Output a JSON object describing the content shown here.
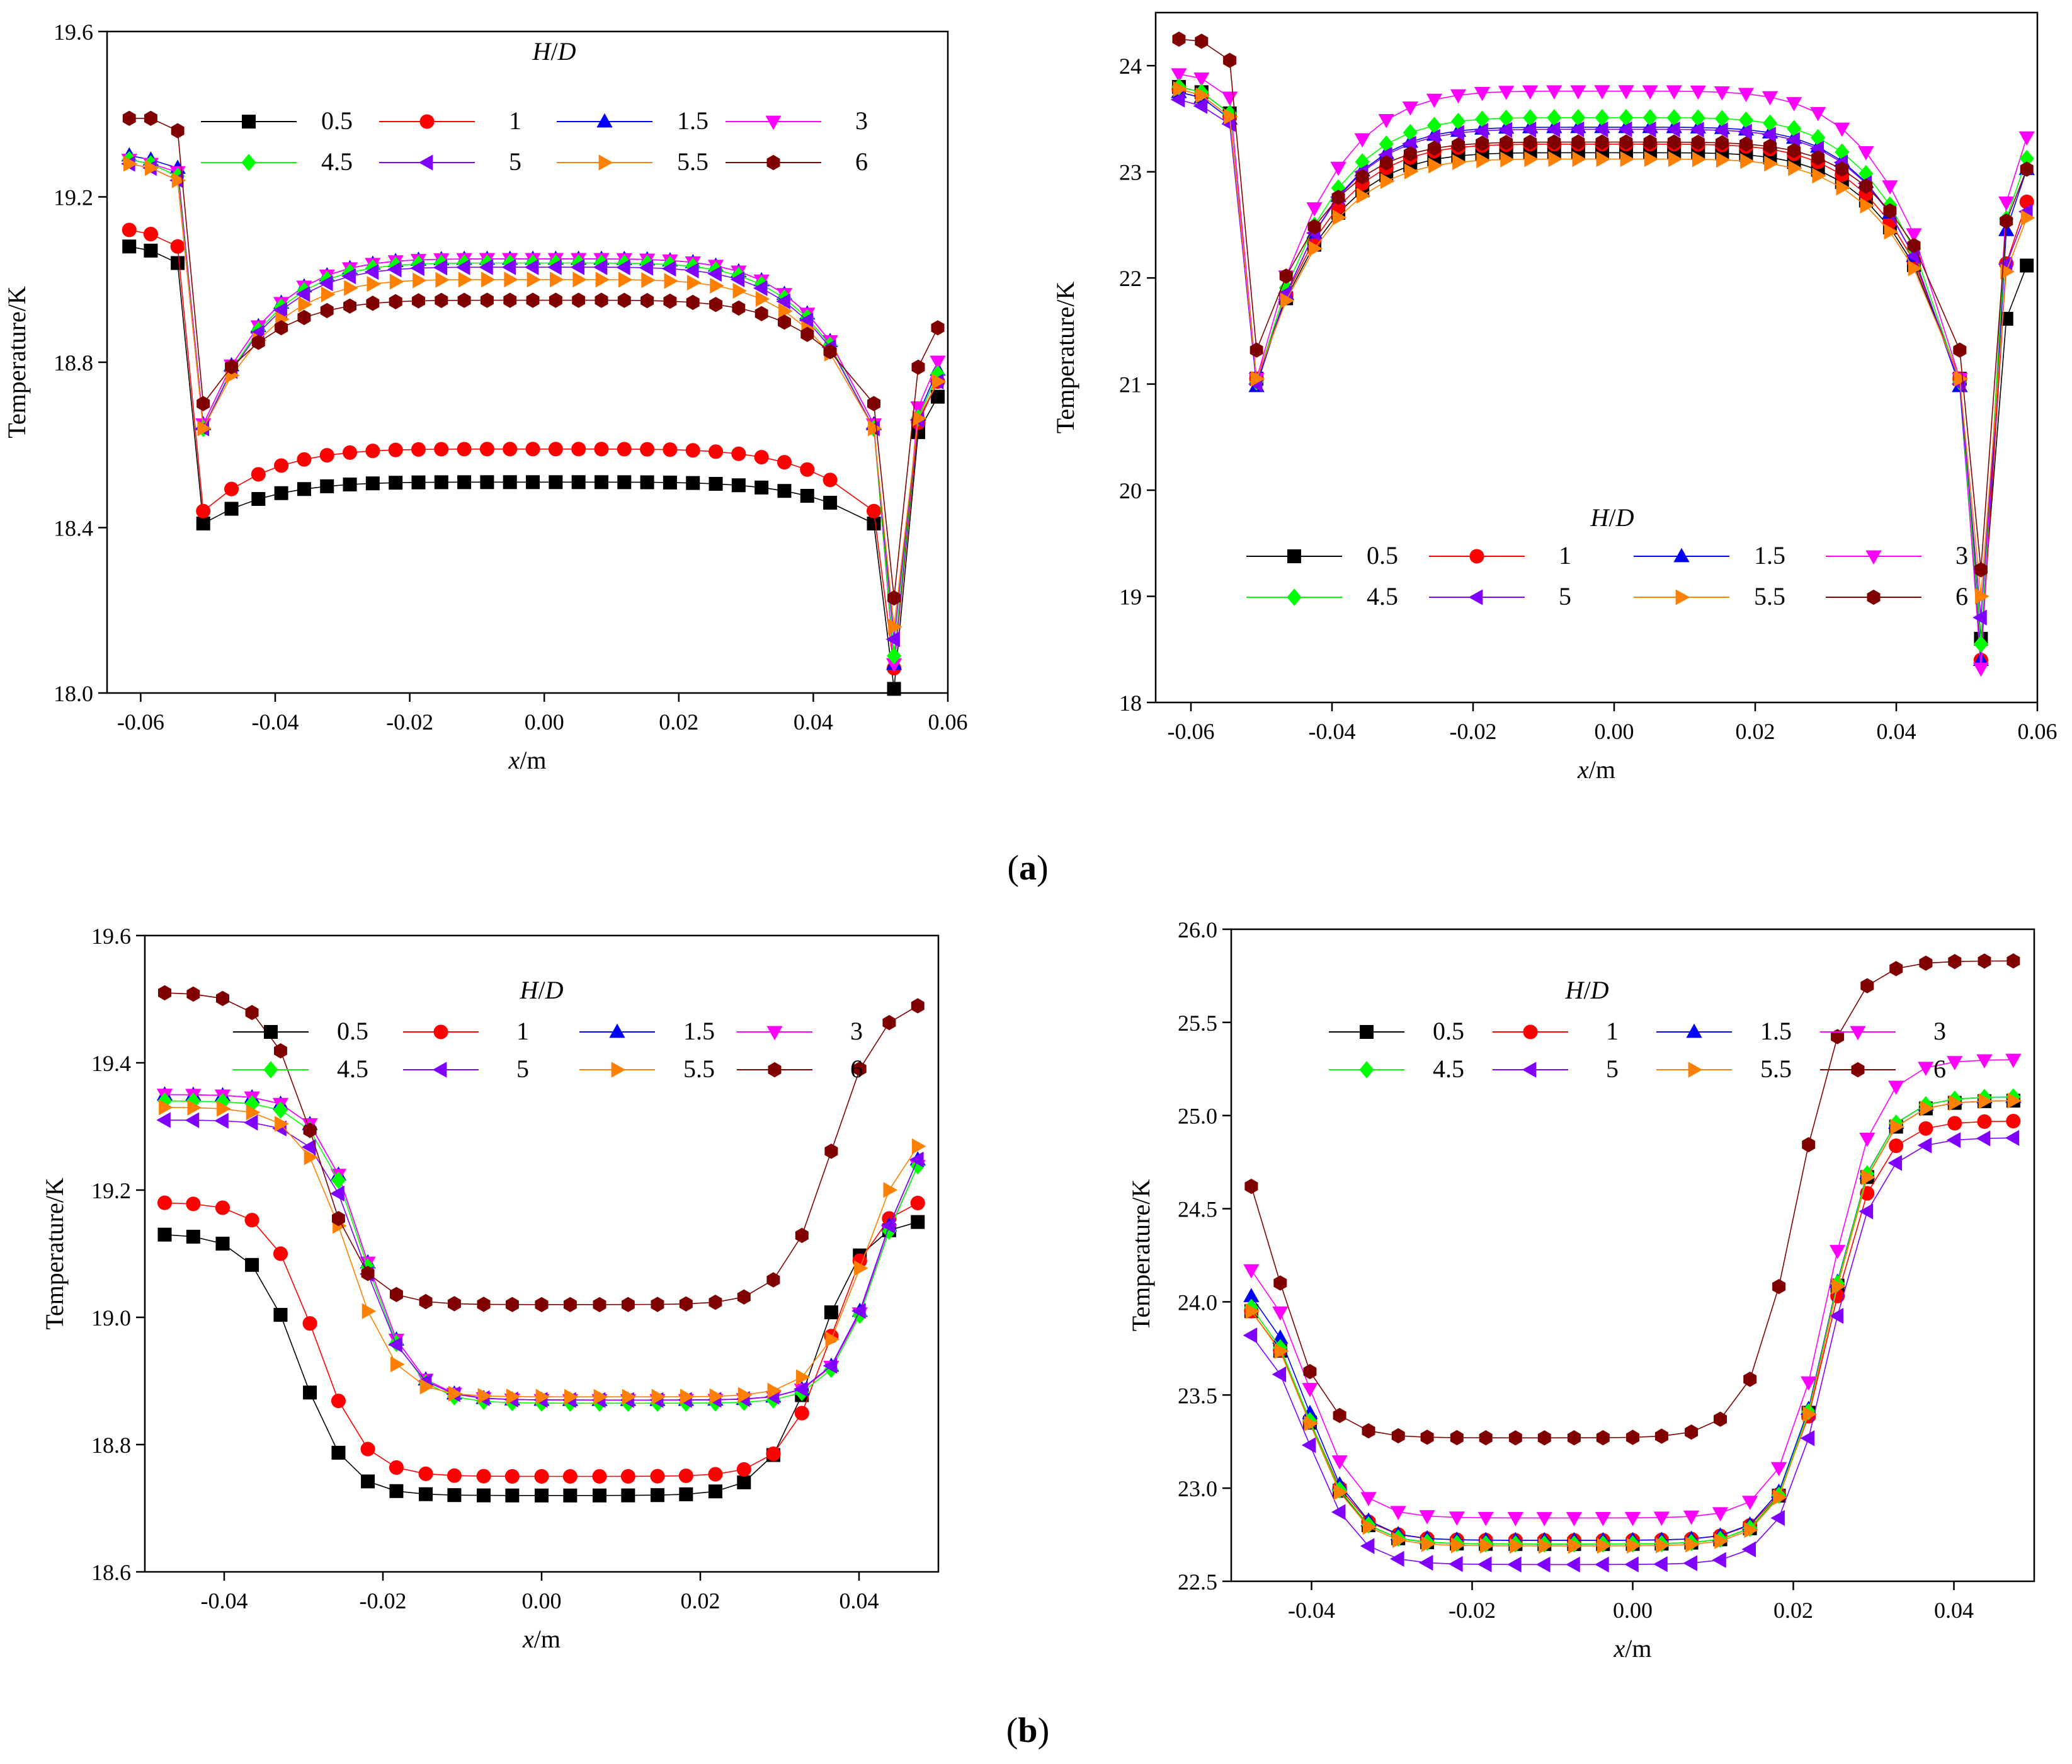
{
  "figure": {
    "panel_labels": [
      {
        "open": "(",
        "letter": "a",
        "close": ")"
      },
      {
        "open": "(",
        "letter": "b",
        "close": ")"
      }
    ]
  },
  "chart_data": [
    {
      "type": "line",
      "panel": "a",
      "title": "",
      "xlabel_italic": "x",
      "xlabel_rest": "/m",
      "ylabel": "Temperature/K",
      "xlim": [
        -0.065,
        0.06
      ],
      "ylim": [
        18.0,
        19.6
      ],
      "xticks": [
        -0.06,
        -0.04,
        -0.02,
        0.0,
        0.02,
        0.04,
        0.06
      ],
      "xtick_labels": [
        "-0.06",
        "-0.04",
        "-0.02",
        "0.00",
        "0.02",
        "0.04",
        "0.06"
      ],
      "yticks": [
        18.0,
        18.4,
        18.8,
        19.2,
        19.6
      ],
      "ytick_labels": [
        "18.0",
        "18.4",
        "18.8",
        "19.2",
        "19.6"
      ],
      "legend": {
        "title_italic_1": "H",
        "title_slash": "/",
        "title_italic_2": "D",
        "position": "top-center"
      },
      "series": [
        {
          "name": "0.5",
          "color": "#000000",
          "marker": "square",
          "profile": "plate",
          "params": {
            "a0": 19.08,
            "a1": 19.07,
            "a2": 19.04,
            "c": 18.51,
            "m": 18.41,
            "k": 18.01,
            "t1": 18.7,
            "t2": 18.72
          }
        },
        {
          "name": "1",
          "color": "#ff0000",
          "marker": "circle",
          "profile": "plate",
          "params": {
            "a0": 19.12,
            "a1": 19.11,
            "a2": 19.08,
            "c": 18.59,
            "m": 18.44,
            "k": 18.06,
            "t1": 18.72,
            "t2": 18.76
          }
        },
        {
          "name": "1.5",
          "color": "#0000ff",
          "marker": "triangle-up",
          "profile": "plate",
          "params": {
            "a0": 19.3,
            "a1": 19.29,
            "a2": 19.27,
            "c": 19.05,
            "m": 18.65,
            "k": 18.07,
            "t1": 18.74,
            "t2": 18.79
          }
        },
        {
          "name": "3",
          "color": "#ff00ff",
          "marker": "triangle-down",
          "profile": "plate",
          "params": {
            "a0": 19.29,
            "a1": 19.28,
            "a2": 19.26,
            "c": 19.05,
            "m": 18.65,
            "k": 18.07,
            "t1": 18.76,
            "t2": 18.81
          }
        },
        {
          "name": "4.5",
          "color": "#00ff00",
          "marker": "diamond",
          "profile": "plate",
          "params": {
            "a0": 19.29,
            "a1": 19.28,
            "a2": 19.25,
            "c": 19.04,
            "m": 18.64,
            "k": 18.09,
            "t1": 18.73,
            "t2": 18.78
          }
        },
        {
          "name": "5",
          "color": "#8000ff",
          "marker": "triangle-left",
          "profile": "plate",
          "params": {
            "a0": 19.28,
            "a1": 19.27,
            "a2": 19.24,
            "c": 19.03,
            "m": 18.64,
            "k": 18.13,
            "t1": 18.72,
            "t2": 18.76
          }
        },
        {
          "name": "5.5",
          "color": "#ff8000",
          "marker": "triangle-right",
          "profile": "plate",
          "params": {
            "a0": 19.28,
            "a1": 19.27,
            "a2": 19.24,
            "c": 19.0,
            "m": 18.64,
            "k": 18.16,
            "t1": 18.72,
            "t2": 18.76
          }
        },
        {
          "name": "6",
          "color": "#800000",
          "marker": "hexagon",
          "profile": "plate",
          "params": {
            "a0": 19.39,
            "a1": 19.39,
            "a2": 19.36,
            "c": 18.95,
            "m": 18.7,
            "k": 18.23,
            "t1": 18.85,
            "t2": 18.89
          }
        }
      ]
    },
    {
      "type": "line",
      "panel": "a",
      "title": "",
      "xlabel_italic": "x",
      "xlabel_rest": "/m",
      "ylabel": "Temperature/K",
      "xlim": [
        -0.065,
        0.06
      ],
      "ylim": [
        18,
        24.5
      ],
      "xticks": [
        -0.06,
        -0.04,
        -0.02,
        0.0,
        0.02,
        0.04,
        0.06
      ],
      "xtick_labels": [
        "-0.06",
        "-0.04",
        "-0.02",
        "0.00",
        "0.02",
        "0.04",
        "0.06"
      ],
      "yticks": [
        18,
        19,
        20,
        21,
        22,
        23,
        24
      ],
      "ytick_labels": [
        "18",
        "19",
        "20",
        "21",
        "22",
        "23",
        "24"
      ],
      "legend": {
        "title_italic_1": "H",
        "title_slash": "/",
        "title_italic_2": "D",
        "position": "bottom-center"
      },
      "series": [
        {
          "name": "0.5",
          "color": "#000000",
          "marker": "square",
          "profile": "plate",
          "params": {
            "a0": 23.8,
            "a1": 23.75,
            "a2": 23.55,
            "c": 23.18,
            "m": 21.05,
            "k": 18.6,
            "t1": 21.95,
            "t2": 22.15
          }
        },
        {
          "name": "1",
          "color": "#ff0000",
          "marker": "circle",
          "profile": "plate",
          "params": {
            "a0": 23.78,
            "a1": 23.72,
            "a2": 23.52,
            "c": 23.26,
            "m": 21.05,
            "k": 18.4,
            "t1": 22.55,
            "t2": 22.75
          }
        },
        {
          "name": "1.5",
          "color": "#0000ff",
          "marker": "triangle-up",
          "profile": "plate",
          "params": {
            "a0": 23.75,
            "a1": 23.7,
            "a2": 23.5,
            "c": 23.42,
            "m": 20.98,
            "k": 18.4,
            "t1": 22.9,
            "t2": 23.05
          }
        },
        {
          "name": "3",
          "color": "#ff00ff",
          "marker": "triangle-down",
          "profile": "plate",
          "params": {
            "a0": 23.92,
            "a1": 23.88,
            "a2": 23.7,
            "c": 23.76,
            "m": 21.05,
            "k": 18.32,
            "t1": 23.2,
            "t2": 23.35
          }
        },
        {
          "name": "4.5",
          "color": "#00ff00",
          "marker": "diamond",
          "profile": "plate",
          "params": {
            "a0": 23.8,
            "a1": 23.75,
            "a2": 23.55,
            "c": 23.51,
            "m": 21.02,
            "k": 18.55,
            "t1": 23.0,
            "t2": 23.15
          }
        },
        {
          "name": "5",
          "color": "#8000ff",
          "marker": "triangle-left",
          "profile": "plate",
          "params": {
            "a0": 23.68,
            "a1": 23.62,
            "a2": 23.45,
            "c": 23.4,
            "m": 21.0,
            "k": 18.8,
            "t1": 22.5,
            "t2": 22.65
          }
        },
        {
          "name": "5.5",
          "color": "#ff8000",
          "marker": "triangle-right",
          "profile": "plate",
          "params": {
            "a0": 23.78,
            "a1": 23.72,
            "a2": 23.52,
            "c": 23.12,
            "m": 21.05,
            "k": 19.0,
            "t1": 22.4,
            "t2": 22.6
          }
        },
        {
          "name": "6",
          "color": "#800000",
          "marker": "hexagon",
          "profile": "plate",
          "params": {
            "a0": 24.25,
            "a1": 24.23,
            "a2": 24.05,
            "c": 23.28,
            "m": 21.32,
            "k": 19.25,
            "t1": 22.9,
            "t2": 23.05
          }
        }
      ]
    },
    {
      "type": "line",
      "panel": "b",
      "title": "",
      "xlabel_italic": "x",
      "xlabel_rest": "/m",
      "ylabel": "Temperature/K",
      "xlim": [
        -0.05,
        0.05
      ],
      "ylim": [
        18.6,
        19.6
      ],
      "xticks": [
        -0.04,
        -0.02,
        0.0,
        0.02,
        0.04
      ],
      "xtick_labels": [
        "-0.04",
        "-0.02",
        "0.00",
        "0.02",
        "0.04"
      ],
      "yticks": [
        18.6,
        18.8,
        19.0,
        19.2,
        19.4,
        19.6
      ],
      "ytick_labels": [
        "18.6",
        "18.8",
        "19.0",
        "19.2",
        "19.4",
        "19.6"
      ],
      "legend": {
        "title_italic_1": "H",
        "title_slash": "/",
        "title_italic_2": "D",
        "position": "top-center"
      },
      "series": [
        {
          "name": "0.5",
          "color": "#000000",
          "marker": "square",
          "profile": "bowl",
          "params": {
            "L": 19.13,
            "R": 19.15,
            "min": 18.72,
            "x0": 0.002
          }
        },
        {
          "name": "1",
          "color": "#ff0000",
          "marker": "circle",
          "profile": "bowl",
          "params": {
            "L": 19.18,
            "R": 19.18,
            "min": 18.75,
            "x0": 0.004
          }
        },
        {
          "name": "1.5",
          "color": "#0000ff",
          "marker": "triangle-up",
          "profile": "bowl",
          "params": {
            "L": 19.35,
            "R": 19.25,
            "min": 18.87,
            "x0": 0.01
          }
        },
        {
          "name": "3",
          "color": "#ff00ff",
          "marker": "triangle-down",
          "profile": "bowl",
          "params": {
            "L": 19.35,
            "R": 19.24,
            "min": 18.87,
            "x0": 0.01
          }
        },
        {
          "name": "4.5",
          "color": "#00ff00",
          "marker": "diamond",
          "profile": "bowl",
          "params": {
            "L": 19.34,
            "R": 19.24,
            "min": 18.865,
            "x0": 0.01
          }
        },
        {
          "name": "5",
          "color": "#8000ff",
          "marker": "triangle-left",
          "profile": "bowl",
          "params": {
            "L": 19.31,
            "R": 19.25,
            "min": 18.87,
            "x0": 0.01
          }
        },
        {
          "name": "5.5",
          "color": "#ff8000",
          "marker": "triangle-right",
          "profile": "bowl",
          "params": {
            "L": 19.33,
            "R": 19.27,
            "min": 18.875,
            "x0": 0.008
          }
        },
        {
          "name": "6",
          "color": "#800000",
          "marker": "hexagon",
          "profile": "bowl",
          "params": {
            "L": 19.51,
            "R": 19.49,
            "min": 19.02,
            "x0": 0.004
          }
        }
      ]
    },
    {
      "type": "line",
      "panel": "b",
      "title": "",
      "xlabel_italic": "x",
      "xlabel_rest": "/m",
      "ylabel": "Temperature/K",
      "xlim": [
        -0.05,
        0.05
      ],
      "ylim": [
        22.5,
        26.0
      ],
      "xticks": [
        -0.04,
        -0.02,
        0.0,
        0.02,
        0.04
      ],
      "xtick_labels": [
        "-0.04",
        "-0.02",
        "0.00",
        "0.02",
        "0.04"
      ],
      "yticks": [
        22.5,
        23.0,
        23.5,
        24.0,
        24.5,
        25.0,
        25.5,
        26.0
      ],
      "ytick_labels": [
        "22.5",
        "23.0",
        "23.5",
        "24.0",
        "24.5",
        "25.0",
        "25.5",
        "26.0"
      ],
      "legend": {
        "title_italic_1": "H",
        "title_slash": "/",
        "title_italic_2": "D",
        "position": "top-center"
      },
      "series": [
        {
          "name": "0.5",
          "color": "#000000",
          "marker": "square",
          "profile": "bowl",
          "params": {
            "L": 23.95,
            "R": 25.08,
            "min": 22.7,
            "x0": -0.008
          }
        },
        {
          "name": "1",
          "color": "#ff0000",
          "marker": "circle",
          "profile": "bowl",
          "params": {
            "L": 23.95,
            "R": 24.97,
            "min": 22.72,
            "x0": -0.008
          }
        },
        {
          "name": "1.5",
          "color": "#0000ff",
          "marker": "triangle-up",
          "profile": "bowl",
          "params": {
            "L": 24.03,
            "R": 25.1,
            "min": 22.72,
            "x0": -0.008
          }
        },
        {
          "name": "3",
          "color": "#ff00ff",
          "marker": "triangle-down",
          "profile": "bowl",
          "params": {
            "L": 24.17,
            "R": 25.3,
            "min": 22.84,
            "x0": -0.008
          }
        },
        {
          "name": "4.5",
          "color": "#00ff00",
          "marker": "diamond",
          "profile": "bowl",
          "params": {
            "L": 23.97,
            "R": 25.1,
            "min": 22.7,
            "x0": -0.008
          }
        },
        {
          "name": "5",
          "color": "#8000ff",
          "marker": "triangle-left",
          "profile": "bowl",
          "params": {
            "L": 23.82,
            "R": 24.88,
            "min": 22.59,
            "x0": -0.008
          }
        },
        {
          "name": "5.5",
          "color": "#ff8000",
          "marker": "triangle-right",
          "profile": "bowl",
          "params": {
            "L": 23.95,
            "R": 25.08,
            "min": 22.69,
            "x0": -0.008
          }
        },
        {
          "name": "6",
          "color": "#800000",
          "marker": "hexagon",
          "profile": "bowl",
          "params": {
            "L": 24.62,
            "R": 25.83,
            "min": 23.27,
            "x0": -0.012
          }
        }
      ]
    }
  ]
}
